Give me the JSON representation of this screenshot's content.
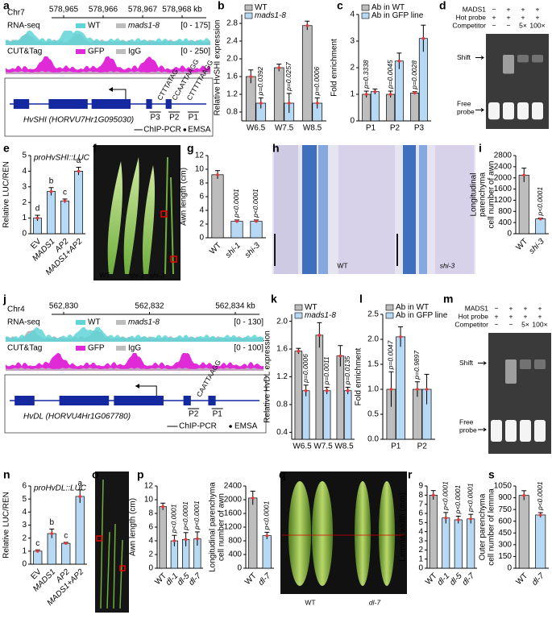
{
  "panel_labels": [
    "a",
    "b",
    "c",
    "d",
    "e",
    "f",
    "g",
    "h",
    "i",
    "j",
    "k",
    "l",
    "m",
    "n",
    "o",
    "p",
    "q",
    "r",
    "s"
  ],
  "genome_tracks": [
    {
      "chrom": "Chr7",
      "coords": [
        "578,965",
        "578,966",
        "578,967",
        "578,968 kb"
      ],
      "rna_label": "RNA-seq",
      "rna_legend": [
        "WT",
        "mads1-8"
      ],
      "rna_range": "[0 - 175]",
      "cut_label": "CUT&Tag",
      "cut_legend": [
        "GFP",
        "IgG"
      ],
      "cut_range": "[0 - 250]",
      "motifs": [
        "CTTTATAG",
        "CCAATTAAGG",
        "CTTTTTAAGG"
      ],
      "primers": [
        "P3",
        "P2",
        "P1"
      ],
      "gene": "HvSHI (HORVU7Hr1G095030)",
      "legend": [
        "ChIP-PCR",
        "EMSA"
      ]
    },
    {
      "chrom": "Chr4",
      "coords": [
        "562,830",
        "562,832",
        "562,834 kb"
      ],
      "rna_label": "RNA-seq",
      "rna_legend": [
        "WT",
        "mads1-8"
      ],
      "rna_range": "[0 - 130]",
      "cut_label": "CUT&Tag",
      "cut_legend": [
        "GFP",
        "IgG"
      ],
      "cut_range": "[0 - 100]",
      "motifs": [
        "CAATTAAGG"
      ],
      "primers": [
        "P2",
        "P1"
      ],
      "gene": "HvDL (HORVU4Hr1G067780)",
      "legend": [
        "ChIP-PCR",
        "EMSA"
      ]
    }
  ],
  "gels": [
    {
      "rows": [
        {
          "label": "MADS1",
          "lanes": [
            "−",
            "+",
            "+",
            "+"
          ]
        },
        {
          "label": "Hot probe",
          "lanes": [
            "+",
            "+",
            "+",
            "+"
          ]
        },
        {
          "label": "Competitor",
          "lanes": [
            "−",
            "−",
            "5×",
            "100×"
          ]
        }
      ],
      "shift": "Shift",
      "free": [
        "Free",
        "probe"
      ]
    },
    {
      "rows": [
        {
          "label": "MADS1",
          "lanes": [
            "−",
            "+",
            "+",
            "+"
          ]
        },
        {
          "label": "Hot probe",
          "lanes": [
            "+",
            "+",
            "+",
            "+"
          ]
        },
        {
          "label": "Competitor",
          "lanes": [
            "−",
            "−",
            "5×",
            "100×"
          ]
        }
      ],
      "shift": "Shift",
      "free": [
        "Free",
        "probe"
      ]
    }
  ],
  "images": [
    {
      "labels": [
        "WT",
        "shi-1",
        "shi-3"
      ]
    },
    {
      "labels": [
        "WT",
        "shi-3"
      ]
    },
    {
      "labels": []
    },
    {
      "labels": [
        "WT",
        "dl-7"
      ]
    }
  ],
  "chart_data": [
    {
      "type": "bar",
      "ylabel": [
        "Relative HvSHI expression"
      ],
      "categories": [
        "W6.5",
        "W7.5",
        "W8.5"
      ],
      "ylim": [
        0.6,
        3.0
      ],
      "yticks": [
        0.8,
        1.2,
        1.6,
        {
          "value": 2.0,
          "label": "2.0"
        },
        2.4,
        2.8
      ],
      "series": [
        {
          "name": "WT",
          "color": "#bdbdbd",
          "values": [
            1.6,
            1.8,
            2.75
          ],
          "errors": [
            0.15,
            0.08,
            0.1
          ]
        },
        {
          "name": "mads1-8",
          "color": "#b7d9f4",
          "values": [
            1.0,
            1.0,
            1.0
          ],
          "errors": [
            0.12,
            0.22,
            0.12
          ],
          "value_notes": [
            "p=0.0392",
            "p=0.0257",
            "p=0.0006"
          ]
        }
      ]
    },
    {
      "type": "bar",
      "ylabel": [
        "Fold enrichment"
      ],
      "categories": [
        "P1",
        "P2",
        "P3"
      ],
      "ylim": [
        0,
        4
      ],
      "yticks": [
        0,
        1,
        2,
        3,
        4
      ],
      "series": [
        {
          "name": "Ab in WT",
          "color": "#bdbdbd",
          "values": [
            1.0,
            1.0,
            1.05
          ],
          "errors": [
            0.12,
            0.12,
            0.05
          ],
          "value_notes": [
            "p=0.3338",
            "p=0.0045",
            "p=0.0028"
          ]
        },
        {
          "name": "Ab in GFP line",
          "color": "#b7d9f4",
          "values": [
            1.1,
            2.25,
            3.1
          ],
          "errors": [
            0.1,
            0.3,
            0.5
          ]
        }
      ]
    },
    {
      "type": "bar",
      "title": "proHvSHI::LUC",
      "ylabel": [
        "Relative LUC/REN"
      ],
      "categories": [
        "EV",
        "MADS1",
        "AP2",
        "MADS1+AP2"
      ],
      "ylim": [
        0,
        5
      ],
      "yticks": [
        0,
        1,
        2,
        3,
        4,
        5
      ],
      "values": [
        1.0,
        2.7,
        2.1,
        4.0
      ],
      "errors": [
        0.18,
        0.25,
        0.12,
        0.25
      ],
      "colors": [
        "#b7d9f4",
        "#b7d9f4",
        "#b7d9f4",
        "#b7d9f4"
      ],
      "letters": [
        "d",
        "b",
        "c",
        "a"
      ]
    },
    {
      "type": "bar",
      "ylabel": [
        "Awn length (cm)"
      ],
      "categories": [
        "WT",
        "shi-1",
        "shi-3"
      ],
      "ylim": [
        0,
        12
      ],
      "yticks": [
        0,
        2,
        4,
        6,
        8,
        10,
        12
      ],
      "values": [
        9.2,
        2.4,
        2.4
      ],
      "errors": [
        0.6,
        0.2,
        0.2
      ],
      "colors": [
        "#bdbdbd",
        "#b7d9f4",
        "#b7d9f4"
      ],
      "value_notes": [
        null,
        "p<0.0001",
        "p<0.0001"
      ]
    },
    {
      "type": "bar",
      "ylabel": [
        "Longitudinal",
        "parenchyma",
        "cell number of awn"
      ],
      "categories": [
        "WT",
        "shi-3"
      ],
      "ylim": [
        0,
        2800
      ],
      "yticks": [
        0,
        400,
        800,
        1200,
        1600,
        2000,
        2400,
        2800
      ],
      "values": [
        2100,
        530
      ],
      "errors": [
        250,
        30
      ],
      "colors": [
        "#bdbdbd",
        "#b7d9f4"
      ],
      "value_notes": [
        null,
        "p<0.0001"
      ]
    },
    {
      "type": "bar",
      "ylabel": [
        "Relative HvDL expression"
      ],
      "categories": [
        "W6.5",
        "W7.5",
        "W8.5"
      ],
      "ylim": [
        0.3,
        2.1
      ],
      "yticks": [
        0.4,
        0.8,
        1.2,
        1.6,
        {
          "value": 2.0,
          "label": "2.0"
        }
      ],
      "series": [
        {
          "name": "WT",
          "color": "#bdbdbd",
          "values": [
            1.57,
            1.8,
            1.5
          ],
          "errors": [
            0.04,
            0.18,
            0.15
          ]
        },
        {
          "name": "mads1-8",
          "color": "#b7d9f4",
          "values": [
            1.0,
            1.0,
            1.0
          ],
          "errors": [
            0.08,
            0.05,
            0.05
          ],
          "value_notes": [
            "p=0.0006",
            "p=0.0011",
            "p=0.0135"
          ]
        }
      ]
    },
    {
      "type": "bar",
      "ylabel": [
        "Fold enrichment"
      ],
      "categories": [
        "P1",
        "P2"
      ],
      "ylim": [
        0,
        2.5
      ],
      "yticks": [
        {
          "value": 0,
          "label": "0.0"
        },
        0.5,
        {
          "value": 1,
          "label": "1.0"
        },
        1.5,
        {
          "value": 2,
          "label": "2.0"
        },
        2.5
      ],
      "series": [
        {
          "name": "Ab in WT",
          "color": "#bdbdbd",
          "values": [
            1.0,
            1.0
          ],
          "errors": [
            0.35,
            0.15
          ],
          "value_notes": [
            "p=0.0047",
            "p=0.9897"
          ]
        },
        {
          "name": "Ab in GFP line",
          "color": "#b7d9f4",
          "values": [
            2.05,
            1.0
          ],
          "errors": [
            0.2,
            0.3
          ]
        }
      ]
    },
    {
      "type": "bar",
      "title": "proHvDL::LUC",
      "ylabel": [
        "Relative LUC/REN"
      ],
      "categories": [
        "EV",
        "MADS1",
        "AP2",
        "MADS1+AP2"
      ],
      "ylim": [
        0,
        6
      ],
      "yticks": [
        0,
        1,
        2,
        3,
        4,
        5,
        6
      ],
      "values": [
        1.0,
        2.35,
        1.6,
        5.2
      ],
      "errors": [
        0.1,
        0.35,
        0.08,
        0.5
      ],
      "colors": [
        "#b7d9f4",
        "#b7d9f4",
        "#b7d9f4",
        "#b7d9f4"
      ],
      "letters": [
        "c",
        "b",
        "c",
        "a"
      ]
    },
    {
      "type": "bar",
      "ylabel": [
        "Awn length (cm)"
      ],
      "categories": [
        "WT",
        "dl-1",
        "dl-5",
        "dl-7"
      ],
      "ylim": [
        0,
        12
      ],
      "yticks": [
        0,
        2,
        4,
        6,
        8,
        10,
        12
      ],
      "values": [
        9.0,
        4.0,
        4.2,
        4.3
      ],
      "errors": [
        0.5,
        0.8,
        1.0,
        1.0
      ],
      "colors": [
        "#bdbdbd",
        "#b7d9f4",
        "#b7d9f4",
        "#b7d9f4"
      ],
      "value_notes": [
        null,
        "p<0.0001",
        "p<0.0001",
        "p<0.0001"
      ]
    },
    {
      "type": "bar",
      "ylabel": [
        "Longitudinal parenchyma",
        "cell number of awn"
      ],
      "categories": [
        "WT",
        "dl-7"
      ],
      "ylim": [
        0,
        2400
      ],
      "yticks": [
        0,
        400,
        800,
        1200,
        1600,
        2000,
        2400
      ],
      "values": [
        2050,
        950
      ],
      "errors": [
        200,
        100
      ],
      "colors": [
        "#bdbdbd",
        "#b7d9f4"
      ],
      "value_notes": [
        null,
        "p<0.0001"
      ]
    },
    {
      "type": "bar",
      "ylabel": [
        "Lemma width (mm)"
      ],
      "categories": [
        "WT",
        "dl-1",
        "dl-5",
        "dl-7"
      ],
      "ylim": [
        0,
        9
      ],
      "yticks": [
        0,
        1,
        2,
        3,
        4,
        5,
        6,
        7,
        8,
        9
      ],
      "values": [
        8.0,
        5.5,
        5.3,
        5.4
      ],
      "errors": [
        0.5,
        0.6,
        0.4,
        0.5
      ],
      "colors": [
        "#bdbdbd",
        "#b7d9f4",
        "#b7d9f4",
        "#b7d9f4"
      ],
      "value_notes": [
        null,
        "p<0.0001",
        "p<0.0001",
        "p<0.0001"
      ]
    },
    {
      "type": "bar",
      "ylabel": [
        "Outer parenchyma",
        "cell number of lemma"
      ],
      "categories": [
        "WT",
        "dl-7"
      ],
      "ylim": [
        0,
        1050
      ],
      "yticks": [
        0,
        150,
        300,
        450,
        600,
        750,
        900,
        1050
      ],
      "values": [
        930,
        680
      ],
      "errors": [
        60,
        30
      ],
      "colors": [
        "#bdbdbd",
        "#b7d9f4"
      ],
      "value_notes": [
        null,
        "p<0.0001"
      ]
    }
  ]
}
